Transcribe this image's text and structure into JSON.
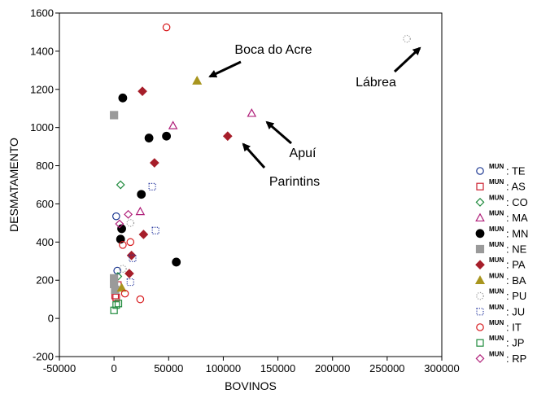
{
  "chart_data": {
    "type": "scatter",
    "xlabel": "BOVINOS",
    "ylabel": "DESMATAMENTO",
    "xlim": [
      -50000,
      300000
    ],
    "ylim": [
      -200,
      1600
    ],
    "xticks": [
      -50000,
      0,
      50000,
      100000,
      150000,
      200000,
      250000,
      300000
    ],
    "yticks": [
      -200,
      0,
      200,
      400,
      600,
      800,
      1000,
      1200,
      1400,
      1600
    ],
    "grid": false,
    "legend_position": "right",
    "legend_prefix": "MUN",
    "series": [
      {
        "name": "TE",
        "marker": "circle-open",
        "color": "#1f3a93",
        "points": [
          [
            2000,
            535
          ],
          [
            3000,
            250
          ]
        ]
      },
      {
        "name": "AS",
        "marker": "square-open",
        "color": "#cc1f2e",
        "points": [
          [
            1000,
            120
          ],
          [
            2000,
            110
          ],
          [
            3500,
            175
          ]
        ]
      },
      {
        "name": "CO",
        "marker": "diamond-open",
        "color": "#1e8a3c",
        "points": [
          [
            6000,
            700
          ],
          [
            3500,
            220
          ]
        ]
      },
      {
        "name": "MA",
        "marker": "triangle-open",
        "color": "#b0207a",
        "points": [
          [
            54000,
            1010
          ],
          [
            126000,
            1075
          ],
          [
            24000,
            560
          ]
        ]
      },
      {
        "name": "MN",
        "marker": "circle-filled",
        "color": "#000000",
        "points": [
          [
            8000,
            1155
          ],
          [
            32000,
            945
          ],
          [
            48000,
            955
          ],
          [
            25000,
            650
          ],
          [
            7000,
            470
          ],
          [
            6000,
            415
          ],
          [
            57000,
            295
          ]
        ]
      },
      {
        "name": "NE",
        "marker": "square-filled",
        "color": "#9a9a9a",
        "points": [
          [
            0,
            1065
          ],
          [
            0,
            210
          ],
          [
            0,
            180
          ],
          [
            1000,
            150
          ]
        ]
      },
      {
        "name": "PA",
        "marker": "diamond-filled",
        "color": "#a61e2a",
        "points": [
          [
            26000,
            1190
          ],
          [
            37000,
            815
          ],
          [
            104000,
            955
          ],
          [
            27000,
            440
          ],
          [
            14000,
            235
          ],
          [
            16000,
            330
          ]
        ]
      },
      {
        "name": "BA",
        "marker": "triangle-filled",
        "color": "#a8951e",
        "points": [
          [
            76000,
            1245
          ],
          [
            7000,
            160
          ]
        ]
      },
      {
        "name": "PU",
        "marker": "circle-dotted",
        "color": "#999999",
        "points": [
          [
            268000,
            1465
          ],
          [
            15000,
            500
          ],
          [
            8000,
            260
          ]
        ]
      },
      {
        "name": "JU",
        "marker": "square-dotted",
        "color": "#2a3aa0",
        "points": [
          [
            35000,
            690
          ],
          [
            38000,
            460
          ],
          [
            17000,
            315
          ],
          [
            15000,
            190
          ]
        ]
      },
      {
        "name": "IT",
        "marker": "circle-open",
        "color": "#d7191c",
        "points": [
          [
            48000,
            1525
          ],
          [
            8000,
            385
          ],
          [
            15000,
            400
          ],
          [
            24000,
            100
          ],
          [
            10000,
            130
          ]
        ]
      },
      {
        "name": "JP",
        "marker": "square-open",
        "color": "#1e8a3c",
        "points": [
          [
            0,
            42
          ],
          [
            2000,
            70
          ],
          [
            4000,
            78
          ]
        ]
      },
      {
        "name": "RP",
        "marker": "diamond-open",
        "color": "#b0207a",
        "points": [
          [
            5000,
            495
          ],
          [
            13000,
            545
          ]
        ]
      }
    ],
    "annotations": [
      {
        "text": "Boca do Acre",
        "target": [
          76000,
          1245
        ]
      },
      {
        "text": "Lábrea",
        "target": [
          268000,
          1465
        ]
      },
      {
        "text": "Apuí",
        "target": [
          126000,
          1075
        ]
      },
      {
        "text": "Parintins",
        "target": [
          104000,
          955
        ]
      }
    ]
  }
}
